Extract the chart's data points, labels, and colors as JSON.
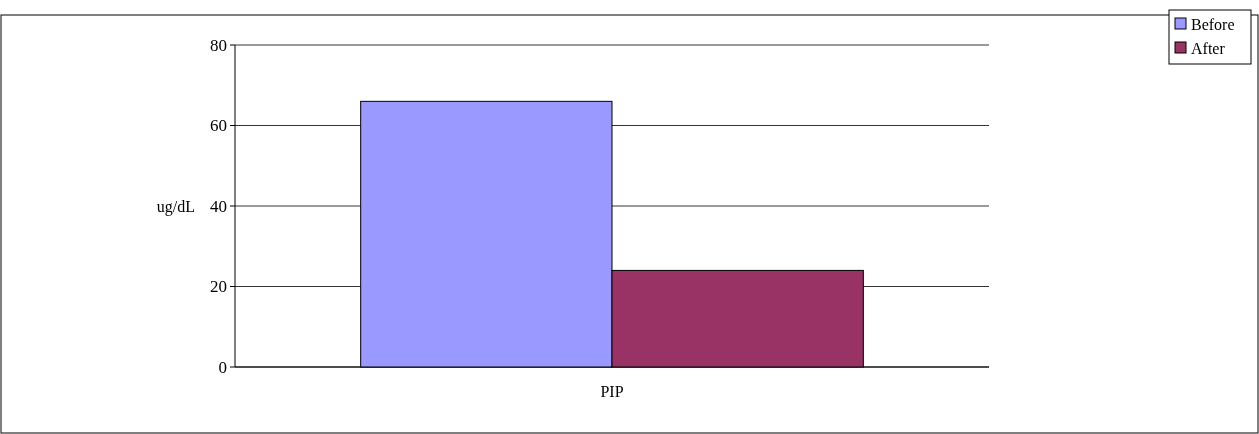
{
  "chart_data": {
    "type": "bar",
    "ylabel": "ug/dL",
    "categories": [
      "PIP"
    ],
    "series": [
      {
        "name": "Before",
        "color": "#9999ff",
        "values": [
          66
        ]
      },
      {
        "name": "After",
        "color": "#993366",
        "values": [
          24
        ]
      }
    ],
    "ylim": [
      0,
      80
    ],
    "yticks": [
      0,
      20,
      40,
      60,
      80
    ],
    "grid": "y",
    "legend": "top right"
  }
}
